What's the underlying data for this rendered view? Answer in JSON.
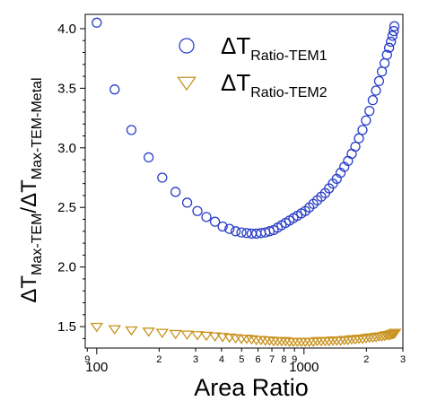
{
  "chart_data": {
    "type": "scatter",
    "xscale": "log",
    "xlim": [
      88,
      3000
    ],
    "ylim": [
      1.32,
      4.12
    ],
    "grid": false,
    "legend_position": "top-right",
    "xlabel": "Area Ratio",
    "ylabel": {
      "delta1": "ΔT",
      "sub1": "Max-TEM",
      "slash": "/",
      "delta2": "ΔT",
      "sub2": "Max-TEM-Metal"
    },
    "x_ticks_major": [
      {
        "value": 100,
        "label": "100"
      },
      {
        "value": 1000,
        "label": "1000"
      }
    ],
    "x_ticks_minor": [
      {
        "value": 90,
        "label": "9"
      },
      {
        "value": 200,
        "label": "2"
      },
      {
        "value": 300,
        "label": "3"
      },
      {
        "value": 400,
        "label": "4"
      },
      {
        "value": 500,
        "label": "5"
      },
      {
        "value": 600,
        "label": "6"
      },
      {
        "value": 700,
        "label": "7"
      },
      {
        "value": 800,
        "label": "8"
      },
      {
        "value": 900,
        "label": "9"
      },
      {
        "value": 2000,
        "label": "2"
      },
      {
        "value": 3000,
        "label": "3"
      }
    ],
    "y_ticks": [
      {
        "value": 1.5,
        "label": "1.5"
      },
      {
        "value": 2.0,
        "label": "2.0"
      },
      {
        "value": 2.5,
        "label": "2.5"
      },
      {
        "value": 3.0,
        "label": "3.0"
      },
      {
        "value": 3.5,
        "label": "3.5"
      },
      {
        "value": 4.0,
        "label": "4.0"
      }
    ],
    "series": [
      {
        "name": {
          "delta": "ΔT",
          "sub": "Ratio-TEM1"
        },
        "marker": "circle",
        "color": "#2a3fc8",
        "x": [
          100,
          122,
          147,
          178,
          207,
          240,
          273,
          306,
          338,
          372,
          405,
          437,
          468,
          499,
          529,
          559,
          589,
          620,
          651,
          682,
          714,
          746,
          780,
          815,
          851,
          889,
          929,
          971,
          1015,
          1061,
          1109,
          1159,
          1211,
          1265,
          1321,
          1379,
          1439,
          1501,
          1565,
          1631,
          1699,
          1769,
          1841,
          1915,
          1991,
          2069,
          2147,
          2225,
          2302,
          2377,
          2448,
          2514,
          2574,
          2627,
          2672,
          2710,
          2730
        ],
        "y": [
          4.05,
          3.49,
          3.15,
          2.92,
          2.75,
          2.63,
          2.54,
          2.47,
          2.42,
          2.38,
          2.34,
          2.32,
          2.3,
          2.29,
          2.285,
          2.28,
          2.28,
          2.285,
          2.29,
          2.3,
          2.31,
          2.33,
          2.35,
          2.37,
          2.39,
          2.41,
          2.43,
          2.45,
          2.47,
          2.5,
          2.53,
          2.56,
          2.59,
          2.62,
          2.66,
          2.7,
          2.74,
          2.79,
          2.84,
          2.89,
          2.95,
          3.01,
          3.08,
          3.15,
          3.23,
          3.31,
          3.4,
          3.48,
          3.56,
          3.64,
          3.71,
          3.78,
          3.84,
          3.89,
          3.94,
          3.98,
          4.02
        ]
      },
      {
        "name": {
          "delta": "ΔT",
          "sub": "Ratio-TEM2"
        },
        "marker": "triangle-down",
        "color": "#c8921e",
        "x": [
          100,
          122,
          147,
          178,
          207,
          240,
          273,
          306,
          338,
          372,
          405,
          437,
          468,
          499,
          529,
          559,
          589,
          620,
          651,
          682,
          714,
          746,
          780,
          815,
          851,
          889,
          929,
          971,
          1015,
          1061,
          1109,
          1159,
          1211,
          1265,
          1321,
          1379,
          1439,
          1501,
          1565,
          1631,
          1699,
          1769,
          1841,
          1915,
          1991,
          2069,
          2147,
          2225,
          2302,
          2377,
          2448,
          2514,
          2574,
          2627,
          2672,
          2710,
          2750
        ],
        "y": [
          1.5,
          1.48,
          1.47,
          1.46,
          1.45,
          1.44,
          1.435,
          1.43,
          1.425,
          1.42,
          1.415,
          1.41,
          1.405,
          1.4,
          1.4,
          1.395,
          1.39,
          1.39,
          1.385,
          1.385,
          1.38,
          1.38,
          1.38,
          1.38,
          1.375,
          1.375,
          1.375,
          1.375,
          1.375,
          1.375,
          1.375,
          1.38,
          1.38,
          1.38,
          1.38,
          1.385,
          1.385,
          1.385,
          1.39,
          1.39,
          1.395,
          1.395,
          1.4,
          1.4,
          1.405,
          1.41,
          1.41,
          1.415,
          1.42,
          1.42,
          1.425,
          1.43,
          1.43,
          1.435,
          1.44,
          1.44,
          1.45
        ]
      }
    ]
  }
}
